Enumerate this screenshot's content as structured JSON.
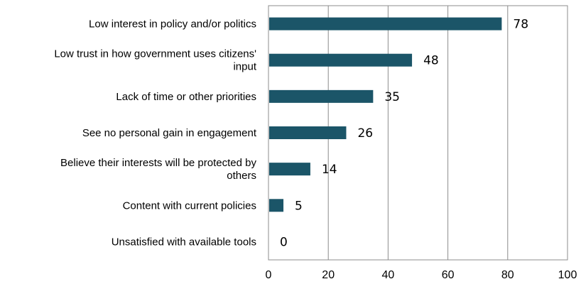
{
  "chart_data": {
    "type": "bar",
    "orientation": "horizontal",
    "categories": [
      [
        "Low interest in policy and/or politics"
      ],
      [
        "Low trust in how government uses citizens'",
        "input"
      ],
      [
        "Lack of time or other priorities"
      ],
      [
        "See no personal gain in engagement"
      ],
      [
        "Believe their interests will be protected by",
        "others"
      ],
      [
        "Content with current policies"
      ],
      [
        "Unsatisfied with available tools"
      ]
    ],
    "values": [
      78,
      48,
      35,
      26,
      14,
      5,
      0
    ],
    "xlim": [
      0,
      100
    ],
    "xticks": [
      0,
      20,
      40,
      60,
      80,
      100
    ],
    "grid": true,
    "bar_color": "#1b5568",
    "title": "",
    "xlabel": "",
    "ylabel": ""
  }
}
